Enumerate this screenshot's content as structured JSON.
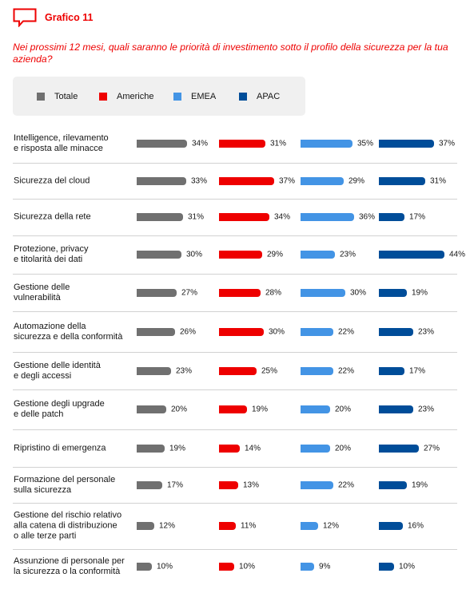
{
  "header": {
    "label": "Grafico 11",
    "icon": "speech-bubble-icon"
  },
  "question": "Nei prossimi 12 mesi, quali saranno le priorità di investimento sotto il profilo della sicurezza per la tua azienda?",
  "colors": {
    "Totale": "#707070",
    "Americhe": "#ee0000",
    "EMEA": "#4394e5",
    "APAC": "#004d99"
  },
  "chart_data": {
    "type": "bar",
    "orientation": "horizontal",
    "legend_position": "top-left",
    "value_suffix": "%",
    "xlim": [
      0,
      44
    ],
    "categories": [
      "Intelligence, rilevamento\ne risposta alle minacce",
      "Sicurezza del cloud",
      "Sicurezza della rete",
      "Protezione, privacy\ne titolarità dei dati",
      "Gestione delle\nvulnerabilità",
      "Automazione della\nsicurezza e della conformità",
      "Gestione delle identità\ne degli accessi",
      "Gestione degli upgrade\ne delle patch",
      "Ripristino di emergenza",
      "Formazione del personale\nsulla sicurezza",
      "Gestione del rischio relativo\nalla catena di distribuzione\no alle terze parti",
      "Assunzione di personale per\nla sicurezza o la conformità"
    ],
    "series": [
      {
        "name": "Totale",
        "values": [
          34,
          33,
          31,
          30,
          27,
          26,
          23,
          20,
          19,
          17,
          12,
          10
        ]
      },
      {
        "name": "Americhe",
        "values": [
          31,
          37,
          34,
          29,
          28,
          30,
          25,
          19,
          14,
          13,
          11,
          10
        ]
      },
      {
        "name": "EMEA",
        "values": [
          35,
          29,
          36,
          23,
          30,
          22,
          22,
          20,
          20,
          22,
          12,
          9
        ]
      },
      {
        "name": "APAC",
        "values": [
          37,
          31,
          17,
          44,
          19,
          23,
          17,
          23,
          27,
          19,
          16,
          10
        ]
      }
    ]
  }
}
